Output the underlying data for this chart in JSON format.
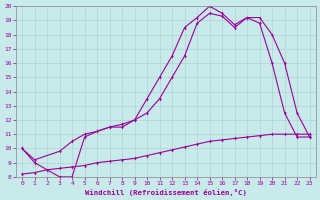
{
  "xlabel": "Windchill (Refroidissement éolien,°C)",
  "bg_color": "#c8eaea",
  "line_color": "#990099",
  "xlim": [
    -0.5,
    23.5
  ],
  "ylim": [
    8,
    20
  ],
  "xticks": [
    0,
    1,
    2,
    3,
    4,
    5,
    6,
    7,
    8,
    9,
    10,
    11,
    12,
    13,
    14,
    15,
    16,
    17,
    18,
    19,
    20,
    21,
    22,
    23
  ],
  "yticks": [
    8,
    9,
    10,
    11,
    12,
    13,
    14,
    15,
    16,
    17,
    18,
    19,
    20
  ],
  "line1_x": [
    0,
    1,
    3,
    4,
    5,
    6,
    7,
    8,
    9,
    10,
    11,
    12,
    13,
    14,
    15,
    16,
    17,
    18,
    19,
    20,
    21,
    22,
    23
  ],
  "line1_y": [
    10,
    9,
    8,
    8,
    10.8,
    11.2,
    11.5,
    11.5,
    12,
    13.5,
    15,
    16.5,
    18.5,
    19.2,
    20,
    19.5,
    18.7,
    19.2,
    18.8,
    16,
    12.5,
    10.8,
    10.8
  ],
  "line2_x": [
    0,
    1,
    3,
    4,
    5,
    6,
    7,
    8,
    9,
    10,
    11,
    12,
    13,
    14,
    15,
    16,
    17,
    18,
    19,
    20,
    21,
    22,
    23
  ],
  "line2_y": [
    10,
    9.2,
    9.8,
    10.5,
    11.0,
    11.2,
    11.5,
    11.7,
    12.0,
    12.5,
    13.5,
    15.0,
    16.5,
    18.8,
    19.5,
    19.3,
    18.5,
    19.2,
    19.2,
    18,
    16,
    12.5,
    10.8
  ],
  "line3_x": [
    0,
    1,
    2,
    3,
    4,
    5,
    6,
    7,
    8,
    9,
    10,
    11,
    12,
    13,
    14,
    15,
    16,
    17,
    18,
    19,
    20,
    21,
    22,
    23
  ],
  "line3_y": [
    8.2,
    8.3,
    8.5,
    8.6,
    8.7,
    8.8,
    9.0,
    9.1,
    9.2,
    9.3,
    9.5,
    9.7,
    9.9,
    10.1,
    10.3,
    10.5,
    10.6,
    10.7,
    10.8,
    10.9,
    11.0,
    11.0,
    11.0,
    11.0
  ]
}
